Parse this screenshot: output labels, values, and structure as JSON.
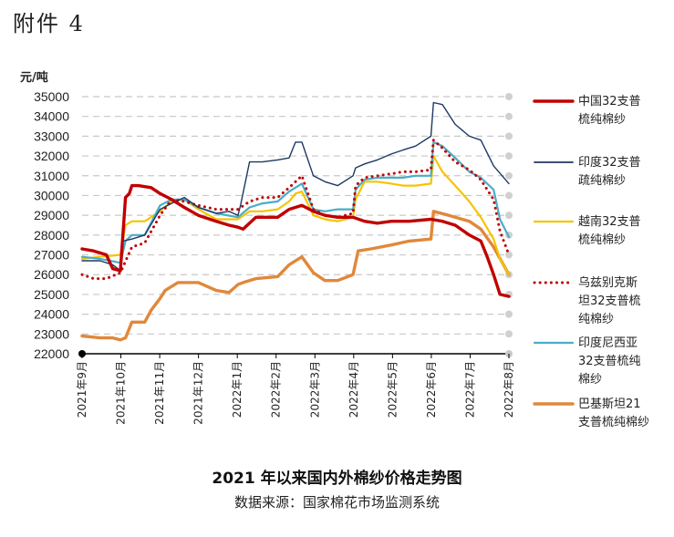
{
  "document": {
    "label": "附件 4"
  },
  "chart_data": {
    "type": "line",
    "title": "2021 年以来国内外棉纱价格走势图",
    "source": "数据来源：国家棉花市场监测系统",
    "ylabel": "元/吨",
    "ylim": [
      22000,
      35000
    ],
    "yticks": [
      22000,
      23000,
      24000,
      25000,
      26000,
      27000,
      28000,
      29000,
      30000,
      31000,
      32000,
      33000,
      34000,
      35000
    ],
    "xlim": [
      "2021-09-01",
      "2022-08-01"
    ],
    "xticks": [
      "2021年9月",
      "2021年10月",
      "2021年11月",
      "2021年12月",
      "2022年1月",
      "2022年2月",
      "2022年3月",
      "2022年4月",
      "2022年5月",
      "2022年6月",
      "2022年7月",
      "2022年8月"
    ],
    "grid": "horizontal-dashed",
    "legend_position": "right",
    "series": [
      {
        "name": "中国32支普梳纯棉纱",
        "color": "#c00000",
        "style": "solid-thick",
        "x": [
          "2021-09-01",
          "2021-09-10",
          "2021-09-20",
          "2021-09-25",
          "2021-10-01",
          "2021-10-05",
          "2021-10-08",
          "2021-10-10",
          "2021-10-15",
          "2021-10-25",
          "2021-11-01",
          "2021-11-10",
          "2021-11-20",
          "2021-12-01",
          "2021-12-15",
          "2021-12-25",
          "2022-01-01",
          "2022-01-05",
          "2022-01-15",
          "2022-02-01",
          "2022-02-10",
          "2022-02-20",
          "2022-03-01",
          "2022-03-10",
          "2022-03-20",
          "2022-04-01",
          "2022-04-10",
          "2022-04-20",
          "2022-05-01",
          "2022-05-15",
          "2022-06-01",
          "2022-06-10",
          "2022-06-20",
          "2022-07-01",
          "2022-07-10",
          "2022-07-15",
          "2022-07-20",
          "2022-07-25",
          "2022-08-01"
        ],
        "y": [
          27300,
          27200,
          27000,
          26300,
          26200,
          29900,
          30100,
          30500,
          30500,
          30400,
          30100,
          29800,
          29400,
          29000,
          28700,
          28500,
          28400,
          28300,
          28900,
          28900,
          29300,
          29500,
          29200,
          29000,
          28900,
          28900,
          28700,
          28600,
          28700,
          28700,
          28800,
          28700,
          28500,
          28000,
          27700,
          26900,
          26000,
          25000,
          24900
        ]
      },
      {
        "name": "印度32支普疏纯棉纱",
        "color": "#1f3864",
        "style": "solid-thin",
        "x": [
          "2021-09-01",
          "2021-09-15",
          "2021-09-25",
          "2021-10-01",
          "2021-10-03",
          "2021-10-10",
          "2021-10-20",
          "2021-11-01",
          "2021-11-10",
          "2021-11-20",
          "2021-12-01",
          "2021-12-15",
          "2021-12-25",
          "2022-01-01",
          "2022-01-03",
          "2022-01-10",
          "2022-01-20",
          "2022-02-01",
          "2022-02-10",
          "2022-02-15",
          "2022-02-20",
          "2022-03-01",
          "2022-03-10",
          "2022-03-20",
          "2022-04-01",
          "2022-04-03",
          "2022-04-10",
          "2022-04-20",
          "2022-05-01",
          "2022-05-10",
          "2022-05-20",
          "2022-06-01",
          "2022-06-03",
          "2022-06-10",
          "2022-06-20",
          "2022-07-01",
          "2022-07-10",
          "2022-07-20",
          "2022-08-01"
        ],
        "y": [
          26700,
          26700,
          26500,
          26200,
          27700,
          27800,
          28000,
          29300,
          29600,
          29900,
          29400,
          29100,
          29200,
          29000,
          29500,
          31700,
          31700,
          31800,
          31900,
          32700,
          32700,
          31000,
          30700,
          30500,
          31000,
          31400,
          31600,
          31800,
          32100,
          32300,
          32500,
          33000,
          34700,
          34600,
          33600,
          33000,
          32800,
          31500,
          30600
        ]
      },
      {
        "name": "越南32支普梳纯棉纱",
        "color": "#f5c400",
        "style": "solid",
        "x": [
          "2021-09-01",
          "2021-09-15",
          "2021-10-01",
          "2021-10-05",
          "2021-10-10",
          "2021-10-20",
          "2021-11-01",
          "2021-11-10",
          "2021-11-20",
          "2021-12-01",
          "2021-12-15",
          "2022-01-01",
          "2022-01-10",
          "2022-01-20",
          "2022-02-01",
          "2022-02-10",
          "2022-02-15",
          "2022-02-20",
          "2022-03-01",
          "2022-03-10",
          "2022-03-20",
          "2022-04-01",
          "2022-04-03",
          "2022-04-10",
          "2022-04-20",
          "2022-05-01",
          "2022-05-10",
          "2022-05-20",
          "2022-06-01",
          "2022-06-03",
          "2022-06-10",
          "2022-06-20",
          "2022-07-01",
          "2022-07-10",
          "2022-07-20",
          "2022-07-25",
          "2022-08-01"
        ],
        "y": [
          26800,
          26900,
          27000,
          28500,
          28700,
          28700,
          29200,
          29700,
          29800,
          29300,
          28800,
          28800,
          29200,
          29200,
          29300,
          29700,
          30100,
          30200,
          29000,
          28800,
          28700,
          28900,
          29800,
          30700,
          30700,
          30600,
          30500,
          30500,
          30600,
          32000,
          31200,
          30500,
          29700,
          28900,
          27800,
          26800,
          26000
        ]
      },
      {
        "name": "乌兹别克斯坦32支普梳纯棉纱",
        "color": "#c00000",
        "style": "dotted",
        "x": [
          "2021-09-01",
          "2021-09-10",
          "2021-09-20",
          "2021-10-01",
          "2021-10-10",
          "2021-10-20",
          "2021-11-01",
          "2021-11-10",
          "2021-11-20",
          "2021-12-01",
          "2021-12-15",
          "2022-01-01",
          "2022-01-10",
          "2022-01-20",
          "2022-02-01",
          "2022-02-10",
          "2022-02-20",
          "2022-03-01",
          "2022-03-10",
          "2022-03-20",
          "2022-04-01",
          "2022-04-03",
          "2022-04-10",
          "2022-04-20",
          "2022-05-01",
          "2022-05-10",
          "2022-05-20",
          "2022-06-01",
          "2022-06-03",
          "2022-06-10",
          "2022-06-20",
          "2022-07-01",
          "2022-07-10",
          "2022-07-20",
          "2022-07-25",
          "2022-08-01"
        ],
        "y": [
          26000,
          25800,
          25800,
          26100,
          27400,
          27600,
          29000,
          29800,
          29700,
          29500,
          29300,
          29300,
          29700,
          29900,
          29900,
          30400,
          31000,
          29300,
          29000,
          28900,
          29100,
          30500,
          30900,
          31000,
          31100,
          31200,
          31200,
          31300,
          32800,
          32400,
          31700,
          31300,
          30800,
          29800,
          28200,
          27000
        ]
      },
      {
        "name": "印度尼西亚32支普梳纯棉纱",
        "color": "#4bacc6",
        "style": "solid",
        "x": [
          "2021-09-01",
          "2021-09-15",
          "2021-10-01",
          "2021-10-05",
          "2021-10-10",
          "2021-10-20",
          "2021-11-01",
          "2021-11-10",
          "2021-11-20",
          "2021-12-01",
          "2021-12-15",
          "2022-01-01",
          "2022-01-10",
          "2022-01-20",
          "2022-02-01",
          "2022-02-10",
          "2022-02-20",
          "2022-03-01",
          "2022-03-10",
          "2022-03-20",
          "2022-04-01",
          "2022-04-03",
          "2022-04-10",
          "2022-04-20",
          "2022-05-01",
          "2022-05-10",
          "2022-05-20",
          "2022-06-01",
          "2022-06-03",
          "2022-06-10",
          "2022-06-20",
          "2022-07-01",
          "2022-07-10",
          "2022-07-20",
          "2022-07-25",
          "2022-08-01"
        ],
        "y": [
          26900,
          26800,
          26600,
          27700,
          28000,
          28000,
          29500,
          29800,
          29800,
          29400,
          29100,
          28900,
          29400,
          29600,
          29700,
          30200,
          30600,
          29300,
          29200,
          29300,
          29300,
          30300,
          30800,
          30900,
          30900,
          30900,
          31000,
          31000,
          32700,
          32500,
          31900,
          31200,
          30900,
          30300,
          28800,
          27900
        ]
      },
      {
        "name": "巴基斯坦21支普梳纯棉纱",
        "color": "#e0883a",
        "style": "solid-thick",
        "x": [
          "2021-09-01",
          "2021-09-15",
          "2021-09-25",
          "2021-10-01",
          "2021-10-05",
          "2021-10-10",
          "2021-10-20",
          "2021-10-25",
          "2021-11-01",
          "2021-11-05",
          "2021-11-15",
          "2021-12-01",
          "2021-12-15",
          "2021-12-25",
          "2022-01-01",
          "2022-01-05",
          "2022-01-15",
          "2022-02-01",
          "2022-02-10",
          "2022-02-20",
          "2022-03-01",
          "2022-03-10",
          "2022-03-20",
          "2022-04-01",
          "2022-04-05",
          "2022-04-15",
          "2022-05-01",
          "2022-05-15",
          "2022-06-01",
          "2022-06-03",
          "2022-06-15",
          "2022-07-01",
          "2022-07-10",
          "2022-07-20",
          "2022-08-01"
        ],
        "y": [
          22900,
          22800,
          22800,
          22700,
          22800,
          23600,
          23600,
          24200,
          24800,
          25200,
          25600,
          25600,
          25200,
          25100,
          25500,
          25600,
          25800,
          25900,
          26500,
          26900,
          26100,
          25700,
          25700,
          26000,
          27200,
          27300,
          27500,
          27700,
          27800,
          29200,
          29000,
          28700,
          28300,
          27400,
          26000
        ]
      }
    ]
  }
}
